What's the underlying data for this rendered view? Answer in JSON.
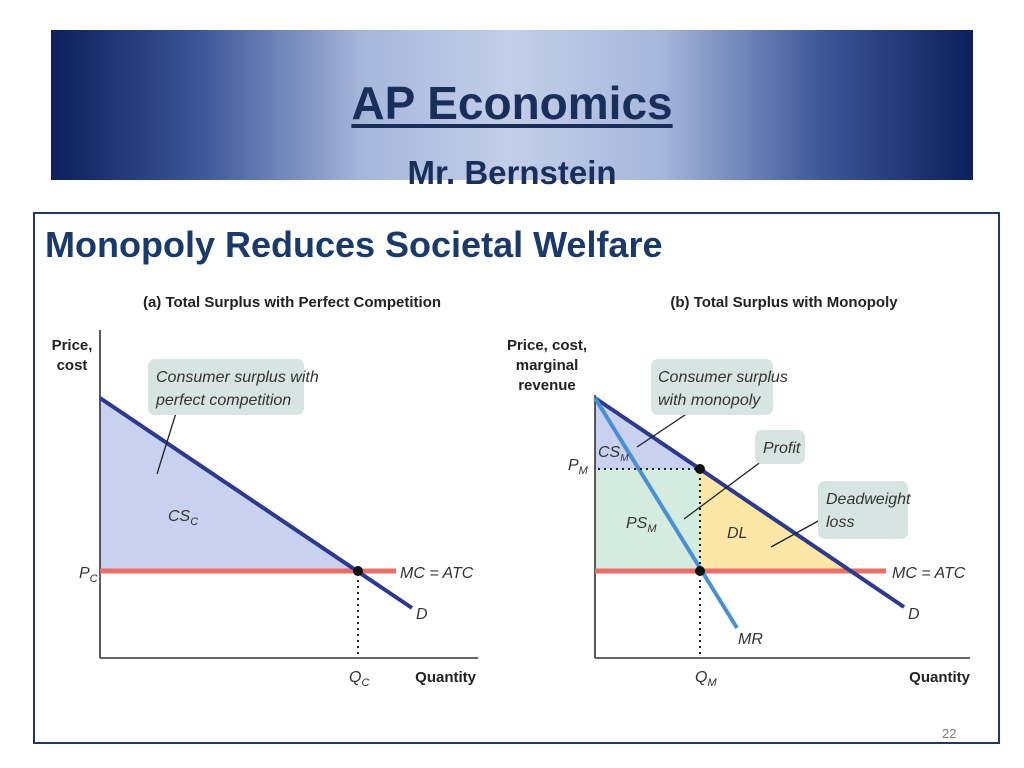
{
  "header": {
    "title": "AP Economics",
    "subtitle": "Mr. Bernstein"
  },
  "slide": {
    "heading": "Monopoly Reduces Societal Welfare",
    "page_number": "22"
  },
  "colors": {
    "header_dark": "#0d1f5c",
    "header_light": "#c3cfe9",
    "heading_text": "#1a3a6b",
    "demand_line": "#2b3a8f",
    "mr_line": "#4a8fd4",
    "mc_atc_line": "#e8706a",
    "consumer_surplus_fill": "#c8d2f0",
    "producer_surplus_fill": "#d4ecdf",
    "deadweight_loss_fill": "#fde6a6",
    "callout_fill": "#d6e5e1"
  },
  "panel_a": {
    "title": "(a) Total Surplus with Perfect Competition",
    "y_axis_label_line1": "Price,",
    "y_axis_label_line2": "cost",
    "x_axis_label": "Quantity",
    "callout_line1": "Consumer surplus with",
    "callout_line2": "perfect competition",
    "cs_label": "CS",
    "cs_sub": "C",
    "price_label": "P",
    "price_sub": "C",
    "quantity_label": "Q",
    "quantity_sub": "C",
    "mc_label": "MC = ATC",
    "demand_label": "D"
  },
  "panel_b": {
    "title": "(b) Total Surplus with Monopoly",
    "y_axis_label_line1": "Price, cost,",
    "y_axis_label_line2": "marginal",
    "y_axis_label_line3": "revenue",
    "x_axis_label": "Quantity",
    "callout_cs_line1": "Consumer surplus",
    "callout_cs_line2": "with monopoly",
    "callout_profit": "Profit",
    "callout_dwl_line1": "Deadweight",
    "callout_dwl_line2": "loss",
    "cs_label": "CS",
    "cs_sub": "M",
    "ps_label": "PS",
    "ps_sub": "M",
    "dl_label": "DL",
    "price_label": "P",
    "price_sub": "M",
    "quantity_label": "Q",
    "quantity_sub": "M",
    "mc_label": "MC = ATC",
    "demand_label": "D",
    "mr_label": "MR"
  }
}
